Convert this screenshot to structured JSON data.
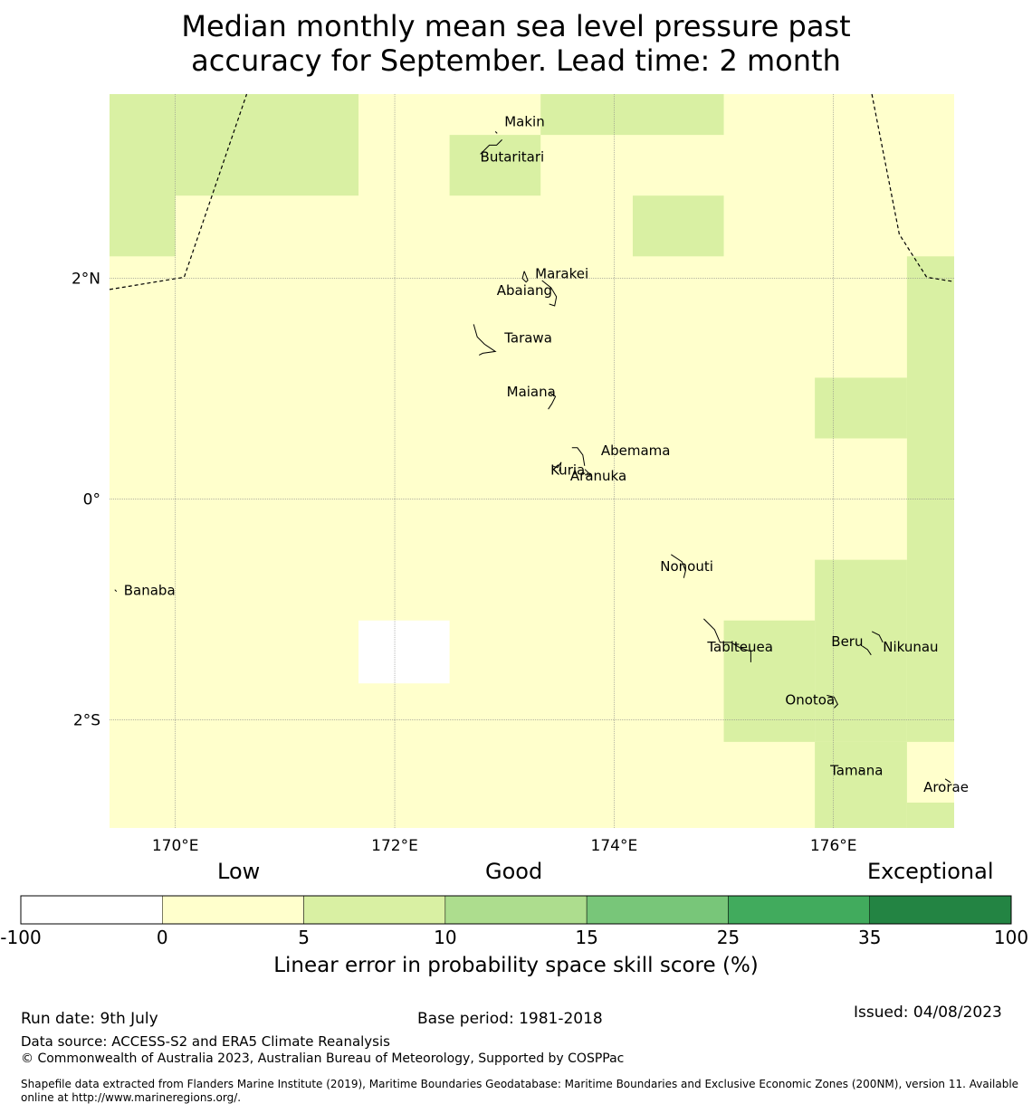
{
  "title": {
    "line1": "Median monthly mean sea level pressure past",
    "line2": "accuracy for September. Lead time: 2 month"
  },
  "map": {
    "lon_range": [
      169.4,
      177.1
    ],
    "lat_range": [
      -2.98,
      3.67
    ],
    "lon_ticks": [
      {
        "value": 170,
        "label": "170°E"
      },
      {
        "value": 172,
        "label": "172°E"
      },
      {
        "value": 174,
        "label": "174°E"
      },
      {
        "value": 176,
        "label": "176°E"
      }
    ],
    "lat_ticks": [
      {
        "value": 2,
        "label": "2°N"
      },
      {
        "value": 0,
        "label": "0°"
      },
      {
        "value": -2,
        "label": "2°S"
      }
    ],
    "background_category": "0 to 5",
    "cells": [
      {
        "lon": [
          169.4,
          170.0
        ],
        "lat": [
          2.2,
          3.67
        ],
        "category": "5 to 10"
      },
      {
        "lon": [
          170.0,
          171.67
        ],
        "lat": [
          2.75,
          3.67
        ],
        "category": "5 to 10"
      },
      {
        "lon": [
          172.5,
          173.33
        ],
        "lat": [
          2.75,
          3.3
        ],
        "category": "5 to 10"
      },
      {
        "lon": [
          173.33,
          175.0
        ],
        "lat": [
          3.3,
          3.67
        ],
        "category": "5 to 10"
      },
      {
        "lon": [
          174.17,
          175.0
        ],
        "lat": [
          2.2,
          2.75
        ],
        "category": "5 to 10"
      },
      {
        "lon": [
          176.67,
          177.1
        ],
        "lat": [
          -2.2,
          2.2
        ],
        "category": "5 to 10"
      },
      {
        "lon": [
          175.83,
          176.67
        ],
        "lat": [
          0.55,
          1.1
        ],
        "category": "5 to 10"
      },
      {
        "lon": [
          175.83,
          176.67
        ],
        "lat": [
          -2.2,
          -0.55
        ],
        "category": "5 to 10"
      },
      {
        "lon": [
          175.0,
          175.83
        ],
        "lat": [
          -2.2,
          -1.1
        ],
        "category": "5 to 10"
      },
      {
        "lon": [
          175.83,
          176.67
        ],
        "lat": [
          -2.98,
          -2.2
        ],
        "category": "5 to 10"
      },
      {
        "lon": [
          176.67,
          177.1
        ],
        "lat": [
          -2.98,
          -2.75
        ],
        "category": "5 to 10"
      },
      {
        "lon": [
          171.67,
          172.5
        ],
        "lat": [
          -1.67,
          -1.1
        ],
        "category": "-100 to 0"
      }
    ],
    "eez_boundaries": [
      [
        [
          169.4,
          1.9
        ],
        [
          170.08,
          2.01
        ],
        [
          170.65,
          3.67
        ]
      ],
      [
        [
          176.35,
          3.67
        ],
        [
          176.6,
          2.4
        ],
        [
          176.85,
          2.01
        ],
        [
          177.1,
          1.97
        ]
      ]
    ],
    "islands": [
      {
        "name": "Makin",
        "lon": 173.0,
        "lat": 3.38
      },
      {
        "name": "Butaritari",
        "lon": 172.78,
        "lat": 3.06
      },
      {
        "name": "Marakei",
        "lon": 173.28,
        "lat": 2.0
      },
      {
        "name": "Abaiang",
        "lon": 172.93,
        "lat": 1.85
      },
      {
        "name": "Tarawa",
        "lon": 173.0,
        "lat": 1.42
      },
      {
        "name": "Maiana",
        "lon": 173.02,
        "lat": 0.93
      },
      {
        "name": "Abemama",
        "lon": 173.88,
        "lat": 0.4
      },
      {
        "name": "Kuria",
        "lon": 173.42,
        "lat": 0.22
      },
      {
        "name": "Aranuka",
        "lon": 173.6,
        "lat": 0.17
      },
      {
        "name": "Nonouti",
        "lon": 174.42,
        "lat": -0.65
      },
      {
        "name": "Banaba",
        "lon": 169.53,
        "lat": -0.87
      },
      {
        "name": "Tabiteuea",
        "lon": 174.85,
        "lat": -1.38
      },
      {
        "name": "Beru",
        "lon": 175.98,
        "lat": -1.33
      },
      {
        "name": "Nikunau",
        "lon": 176.45,
        "lat": -1.38
      },
      {
        "name": "Onotoa",
        "lon": 175.56,
        "lat": -1.86
      },
      {
        "name": "Tamana",
        "lon": 175.97,
        "lat": -2.5
      },
      {
        "name": "Arorae",
        "lon": 176.82,
        "lat": -2.65
      }
    ]
  },
  "legend": {
    "headings": {
      "low": "Low",
      "good": "Good",
      "exceptional": "Exceptional"
    },
    "bins": [
      {
        "range": "-100 to 0",
        "color": "#ffffff"
      },
      {
        "range": "0 to 5",
        "color": "#ffffcc"
      },
      {
        "range": "5 to 10",
        "color": "#d9f0a3"
      },
      {
        "range": "10 to 15",
        "color": "#addd8e"
      },
      {
        "range": "15 to 25",
        "color": "#78c679"
      },
      {
        "range": "25 to 35",
        "color": "#41ab5d"
      },
      {
        "range": "35 to 100",
        "color": "#238443"
      }
    ],
    "ticks": [
      "-100",
      "0",
      "5",
      "10",
      "15",
      "25",
      "35",
      "100"
    ],
    "label": "Linear error in probability space skill score (%)"
  },
  "footer": {
    "run_date": "Run date: 9th July",
    "base_period": "Base period: 1981-2018",
    "issued": "Issued: 04/08/2023",
    "data_source": "Data source: ACCESS-S2 and ERA5 Climate Reanalysis",
    "copyright": "© Commonwealth of Australia 2023, Australian Bureau of Meteorology, Supported by COSPPac",
    "shapefile": "Shapefile data extracted from Flanders Marine Institute (2019), Maritime Boundaries Geodatabase: Maritime Boundaries and Exclusive Economic Zones (200NM), version 11. Available online at http://www.marineregions.org/."
  }
}
